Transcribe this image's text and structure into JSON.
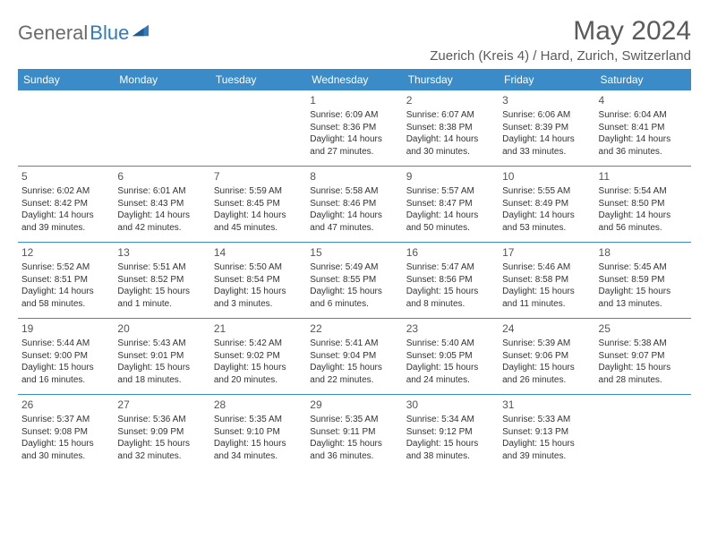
{
  "logo": {
    "text1": "General",
    "text2": "Blue"
  },
  "title": "May 2024",
  "location": "Zuerich (Kreis 4) / Hard, Zurich, Switzerland",
  "colors": {
    "header_bg": "#3b8bc9",
    "header_text": "#ffffff",
    "title_color": "#5a5a5a",
    "logo_gray": "#6b6b6b",
    "logo_blue": "#2f7bbf",
    "border": "#3b8bc9",
    "body_text": "#333333"
  },
  "day_names": [
    "Sunday",
    "Monday",
    "Tuesday",
    "Wednesday",
    "Thursday",
    "Friday",
    "Saturday"
  ],
  "weeks": [
    [
      {},
      {},
      {},
      {
        "n": "1",
        "sr": "6:09 AM",
        "ss": "8:36 PM",
        "dl": "14 hours and 27 minutes."
      },
      {
        "n": "2",
        "sr": "6:07 AM",
        "ss": "8:38 PM",
        "dl": "14 hours and 30 minutes."
      },
      {
        "n": "3",
        "sr": "6:06 AM",
        "ss": "8:39 PM",
        "dl": "14 hours and 33 minutes."
      },
      {
        "n": "4",
        "sr": "6:04 AM",
        "ss": "8:41 PM",
        "dl": "14 hours and 36 minutes."
      }
    ],
    [
      {
        "n": "5",
        "sr": "6:02 AM",
        "ss": "8:42 PM",
        "dl": "14 hours and 39 minutes."
      },
      {
        "n": "6",
        "sr": "6:01 AM",
        "ss": "8:43 PM",
        "dl": "14 hours and 42 minutes."
      },
      {
        "n": "7",
        "sr": "5:59 AM",
        "ss": "8:45 PM",
        "dl": "14 hours and 45 minutes."
      },
      {
        "n": "8",
        "sr": "5:58 AM",
        "ss": "8:46 PM",
        "dl": "14 hours and 47 minutes."
      },
      {
        "n": "9",
        "sr": "5:57 AM",
        "ss": "8:47 PM",
        "dl": "14 hours and 50 minutes."
      },
      {
        "n": "10",
        "sr": "5:55 AM",
        "ss": "8:49 PM",
        "dl": "14 hours and 53 minutes."
      },
      {
        "n": "11",
        "sr": "5:54 AM",
        "ss": "8:50 PM",
        "dl": "14 hours and 56 minutes."
      }
    ],
    [
      {
        "n": "12",
        "sr": "5:52 AM",
        "ss": "8:51 PM",
        "dl": "14 hours and 58 minutes."
      },
      {
        "n": "13",
        "sr": "5:51 AM",
        "ss": "8:52 PM",
        "dl": "15 hours and 1 minute."
      },
      {
        "n": "14",
        "sr": "5:50 AM",
        "ss": "8:54 PM",
        "dl": "15 hours and 3 minutes."
      },
      {
        "n": "15",
        "sr": "5:49 AM",
        "ss": "8:55 PM",
        "dl": "15 hours and 6 minutes."
      },
      {
        "n": "16",
        "sr": "5:47 AM",
        "ss": "8:56 PM",
        "dl": "15 hours and 8 minutes."
      },
      {
        "n": "17",
        "sr": "5:46 AM",
        "ss": "8:58 PM",
        "dl": "15 hours and 11 minutes."
      },
      {
        "n": "18",
        "sr": "5:45 AM",
        "ss": "8:59 PM",
        "dl": "15 hours and 13 minutes."
      }
    ],
    [
      {
        "n": "19",
        "sr": "5:44 AM",
        "ss": "9:00 PM",
        "dl": "15 hours and 16 minutes."
      },
      {
        "n": "20",
        "sr": "5:43 AM",
        "ss": "9:01 PM",
        "dl": "15 hours and 18 minutes."
      },
      {
        "n": "21",
        "sr": "5:42 AM",
        "ss": "9:02 PM",
        "dl": "15 hours and 20 minutes."
      },
      {
        "n": "22",
        "sr": "5:41 AM",
        "ss": "9:04 PM",
        "dl": "15 hours and 22 minutes."
      },
      {
        "n": "23",
        "sr": "5:40 AM",
        "ss": "9:05 PM",
        "dl": "15 hours and 24 minutes."
      },
      {
        "n": "24",
        "sr": "5:39 AM",
        "ss": "9:06 PM",
        "dl": "15 hours and 26 minutes."
      },
      {
        "n": "25",
        "sr": "5:38 AM",
        "ss": "9:07 PM",
        "dl": "15 hours and 28 minutes."
      }
    ],
    [
      {
        "n": "26",
        "sr": "5:37 AM",
        "ss": "9:08 PM",
        "dl": "15 hours and 30 minutes."
      },
      {
        "n": "27",
        "sr": "5:36 AM",
        "ss": "9:09 PM",
        "dl": "15 hours and 32 minutes."
      },
      {
        "n": "28",
        "sr": "5:35 AM",
        "ss": "9:10 PM",
        "dl": "15 hours and 34 minutes."
      },
      {
        "n": "29",
        "sr": "5:35 AM",
        "ss": "9:11 PM",
        "dl": "15 hours and 36 minutes."
      },
      {
        "n": "30",
        "sr": "5:34 AM",
        "ss": "9:12 PM",
        "dl": "15 hours and 38 minutes."
      },
      {
        "n": "31",
        "sr": "5:33 AM",
        "ss": "9:13 PM",
        "dl": "15 hours and 39 minutes."
      },
      {}
    ]
  ],
  "labels": {
    "sunrise": "Sunrise:",
    "sunset": "Sunset:",
    "daylight": "Daylight:"
  }
}
